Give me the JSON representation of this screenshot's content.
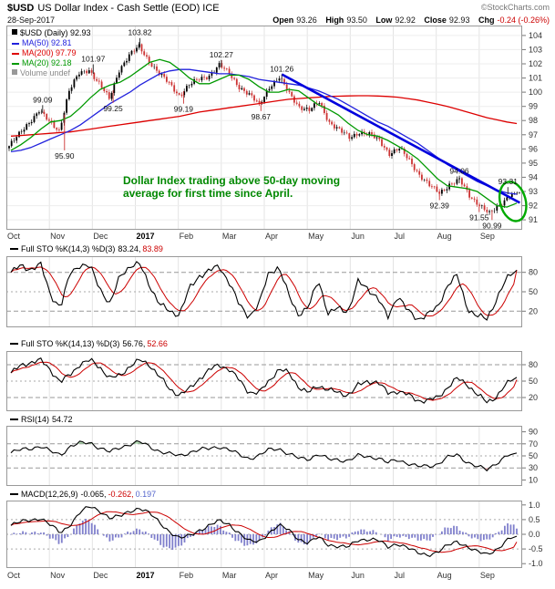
{
  "header": {
    "symbol": "$USD",
    "title": "US Dollar Index - Cash Settle (EOD) ICE",
    "copyright": "©StockCharts.com",
    "date": "28-Sep-2017",
    "quote": {
      "open_label": "Open",
      "open": "93.26",
      "high_label": "High",
      "high": "93.50",
      "low_label": "Low",
      "low": "92.92",
      "close_label": "Close",
      "close": "92.93",
      "chg_label": "Chg",
      "chg": "-0.24 (-0.26%)"
    }
  },
  "legend": {
    "series": "$USD (Daily) 92.93",
    "ma50": "MA(50) 92.81",
    "ma200": "MA(200) 97.79",
    "ma20": "MA(20) 92.18",
    "volume": "Volume undef"
  },
  "annotation": {
    "line1": "Dollar Index trading above 50-day moving",
    "line2": "average for first time since April.",
    "color": "#008800"
  },
  "panels": {
    "sto_fast": {
      "label": "Full STO %K(14,3) %D(3)",
      "k_value": "83.24,",
      "d_value": "83.89"
    },
    "sto_slow": {
      "label": "Full STO %K(14,13) %D(3)",
      "k_value": "56.76,",
      "d_value": "52.66"
    },
    "rsi": {
      "label": "RSI(14)",
      "value": "54.72"
    },
    "macd": {
      "label": "MACD(12,26,9)",
      "v1": "-0.065,",
      "v2": "-0.262,",
      "v3": "0.197"
    }
  },
  "chart_data": [
    {
      "id": "price",
      "type": "candlestick",
      "title": "$USD US Dollar Index - Cash Settle (EOD) ICE, Daily, Oct 2016 - Sep 2017",
      "x_categories": [
        "Oct",
        "Nov",
        "Dec",
        "2017",
        "Feb",
        "Mar",
        "Apr",
        "May",
        "Jun",
        "Jul",
        "Aug",
        "Sep"
      ],
      "weeks_total": 52,
      "ylim": [
        90.3,
        104.7
      ],
      "yticks": [
        104,
        103,
        102,
        101,
        100,
        99,
        98,
        97,
        96,
        95,
        94,
        93,
        92,
        91
      ],
      "weekly_close": [
        96.2,
        97.0,
        97.9,
        98.7,
        97.9,
        97.3,
        100.1,
        101.3,
        101.6,
        100.6,
        99.5,
        101.6,
        102.6,
        103.2,
        102.2,
        101.3,
        100.6,
        99.8,
        100.5,
        100.9,
        101.2,
        101.9,
        101.3,
        100.4,
        99.8,
        99.1,
        100.4,
        101.0,
        99.9,
        99.0,
        98.7,
        99.3,
        97.9,
        97.3,
        96.8,
        97.2,
        97.0,
        96.6,
        95.7,
        96.0,
        95.2,
        94.2,
        93.4,
        92.9,
        93.5,
        93.8,
        92.7,
        92.1,
        91.4,
        92.0,
        92.8,
        92.93
      ],
      "series": [
        {
          "name": "MA(200)",
          "color": "#dd0000",
          "values": [
            96.9,
            96.95,
            97.0,
            97.05,
            97.1,
            97.15,
            97.2,
            97.3,
            97.4,
            97.5,
            97.6,
            97.7,
            97.8,
            97.9,
            98.0,
            98.1,
            98.2,
            98.3,
            98.45,
            98.6,
            98.7,
            98.8,
            98.9,
            99.0,
            99.1,
            99.2,
            99.3,
            99.4,
            99.5,
            99.55,
            99.6,
            99.65,
            99.7,
            99.72,
            99.74,
            99.75,
            99.75,
            99.73,
            99.7,
            99.65,
            99.55,
            99.45,
            99.3,
            99.15,
            99.0,
            98.8,
            98.6,
            98.4,
            98.2,
            98.05,
            97.9,
            97.79
          ]
        },
        {
          "name": "MA(50)",
          "color": "#2222dd",
          "values": [
            95.8,
            95.9,
            96.1,
            96.4,
            96.7,
            97.0,
            97.3,
            97.7,
            98.2,
            98.7,
            99.2,
            99.6,
            100.0,
            100.5,
            100.9,
            101.3,
            101.5,
            101.6,
            101.6,
            101.5,
            101.4,
            101.3,
            101.3,
            101.2,
            101.1,
            100.9,
            100.8,
            100.7,
            100.6,
            100.5,
            100.3,
            100.1,
            99.8,
            99.5,
            99.1,
            98.7,
            98.3,
            97.9,
            97.6,
            97.2,
            96.8,
            96.4,
            95.9,
            95.4,
            94.9,
            94.5,
            94.1,
            93.7,
            93.4,
            93.1,
            92.9,
            92.81
          ]
        },
        {
          "name": "MA(20)",
          "color": "#009900",
          "values": [
            95.9,
            96.3,
            96.8,
            97.4,
            97.9,
            98.0,
            98.3,
            98.9,
            99.6,
            100.2,
            100.5,
            100.7,
            101.1,
            101.6,
            102.1,
            102.3,
            102.1,
            101.6,
            101.0,
            100.6,
            100.6,
            100.9,
            101.2,
            101.2,
            100.9,
            100.4,
            100.0,
            100.0,
            100.2,
            100.1,
            99.6,
            99.1,
            98.8,
            98.4,
            97.8,
            97.3,
            97.0,
            96.9,
            96.6,
            96.2,
            95.8,
            95.3,
            94.6,
            93.9,
            93.4,
            93.3,
            93.2,
            93.0,
            92.5,
            92.0,
            91.9,
            92.18
          ]
        }
      ],
      "ma_last": {
        "ma20": 92.18,
        "ma50": 92.81,
        "ma200": 97.79
      },
      "ohlc_today": {
        "open": 93.26,
        "high": 93.5,
        "low": 92.92,
        "close": 92.93,
        "chg": -0.24,
        "chg_pct": -0.26
      },
      "swing_labels": [
        {
          "week": 3.2,
          "value": 99.09,
          "side": "high"
        },
        {
          "week": 5.4,
          "value": 95.9,
          "side": "low"
        },
        {
          "week": 8.3,
          "value": 101.97,
          "side": "high"
        },
        {
          "week": 10.3,
          "value": 99.25,
          "side": "low"
        },
        {
          "week": 13.0,
          "value": 103.82,
          "side": "high"
        },
        {
          "week": 17.4,
          "value": 99.19,
          "side": "low"
        },
        {
          "week": 21.2,
          "value": 102.27,
          "side": "high"
        },
        {
          "week": 25.2,
          "value": 98.67,
          "side": "low"
        },
        {
          "week": 27.3,
          "value": 101.26,
          "side": "high"
        },
        {
          "week": 43.2,
          "value": 92.39,
          "side": "low"
        },
        {
          "week": 45.2,
          "value": 94.06,
          "side": "high"
        },
        {
          "week": 47.2,
          "value": 91.55,
          "side": "low"
        },
        {
          "week": 48.5,
          "value": 90.99,
          "side": "low"
        },
        {
          "week": 50.1,
          "value": 93.31,
          "side": "high"
        }
      ],
      "trendline": {
        "week1": 27.3,
        "value1": 101.26,
        "week2": 51.3,
        "value2": 92.2,
        "color": "#0000dd"
      },
      "ellipse": {
        "week": 50.6,
        "value": 92.3,
        "color": "#00aa00"
      },
      "colors": {
        "up": "#000000",
        "down": "#cc3333"
      }
    },
    {
      "id": "sto_fast",
      "type": "line",
      "label": "Full STO %K(14,3) %D(3)",
      "k_last": 83.24,
      "d_last": 83.89,
      "ylim": [
        -5,
        105
      ],
      "yticks": [
        80,
        50,
        20
      ],
      "values": [
        80,
        90,
        85,
        92,
        45,
        25,
        80,
        92,
        88,
        55,
        30,
        75,
        90,
        92,
        60,
        30,
        20,
        15,
        55,
        75,
        82,
        90,
        65,
        30,
        12,
        30,
        80,
        88,
        45,
        15,
        25,
        70,
        15,
        25,
        20,
        65,
        55,
        40,
        10,
        45,
        20,
        8,
        15,
        25,
        60,
        75,
        25,
        12,
        8,
        40,
        70,
        83
      ],
      "colors": {
        "k": "#000000",
        "d": "#cc0000"
      }
    },
    {
      "id": "sto_slow",
      "type": "line",
      "label": "Full STO %K(14,13) %D(3)",
      "k_last": 56.76,
      "d_last": 52.66,
      "ylim": [
        -5,
        105
      ],
      "yticks": [
        80,
        50,
        20
      ],
      "values": [
        65,
        78,
        85,
        88,
        70,
        48,
        62,
        82,
        88,
        75,
        55,
        60,
        78,
        88,
        80,
        58,
        35,
        25,
        35,
        55,
        70,
        80,
        72,
        52,
        30,
        28,
        50,
        72,
        65,
        40,
        28,
        42,
        35,
        28,
        25,
        42,
        50,
        48,
        28,
        32,
        25,
        15,
        14,
        20,
        38,
        55,
        45,
        25,
        12,
        22,
        45,
        57
      ],
      "colors": {
        "k": "#000000",
        "d": "#cc0000"
      }
    },
    {
      "id": "rsi",
      "type": "line",
      "label": "RSI(14)",
      "last": 54.72,
      "ylim": [
        0,
        100
      ],
      "yticks": [
        90,
        70,
        50,
        30,
        10
      ],
      "overbought": 70,
      "oversold": 30,
      "values": [
        55,
        60,
        63,
        66,
        57,
        52,
        66,
        71,
        72,
        63,
        56,
        64,
        70,
        73,
        65,
        58,
        53,
        50,
        56,
        60,
        62,
        66,
        60,
        52,
        46,
        50,
        60,
        63,
        53,
        46,
        45,
        53,
        44,
        44,
        42,
        50,
        49,
        47,
        38,
        44,
        38,
        32,
        33,
        36,
        47,
        52,
        40,
        32,
        27,
        39,
        50,
        55
      ],
      "colors": {
        "line": "#000000",
        "ob_fill": "#7fbf7f",
        "os_fill": "#cc8080"
      }
    },
    {
      "id": "macd",
      "type": "line+histogram",
      "label": "MACD(12,26,9)",
      "macd_last": -0.065,
      "signal_last": -0.262,
      "hist_last": 0.197,
      "ylim": [
        -1.15,
        1.15
      ],
      "yticks": [
        1.0,
        0.5,
        0.0,
        -0.5,
        -1.0
      ],
      "values": [
        0.3,
        0.42,
        0.5,
        0.55,
        0.3,
        0.05,
        0.35,
        0.75,
        0.95,
        0.8,
        0.55,
        0.6,
        0.8,
        0.9,
        0.7,
        0.4,
        0.1,
        -0.15,
        -0.05,
        0.15,
        0.3,
        0.45,
        0.35,
        0.05,
        -0.25,
        -0.25,
        0.05,
        0.3,
        0.15,
        -0.15,
        -0.3,
        -0.1,
        -0.35,
        -0.4,
        -0.45,
        -0.2,
        -0.15,
        -0.2,
        -0.45,
        -0.3,
        -0.45,
        -0.65,
        -0.7,
        -0.6,
        -0.4,
        -0.25,
        -0.4,
        -0.6,
        -0.7,
        -0.5,
        -0.2,
        -0.065
      ],
      "colors": {
        "line": "#000000",
        "signal": "#cc0000",
        "hist": "#8080cc"
      }
    }
  ]
}
